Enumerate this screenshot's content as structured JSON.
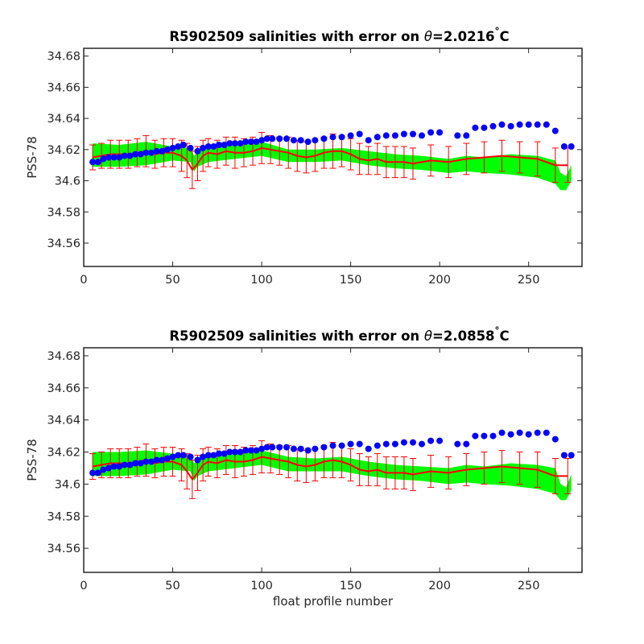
{
  "figure": {
    "xlabel": "float profile number"
  },
  "colors": {
    "band": "#00ff00",
    "errorbar": "#ff0000",
    "markers": "#0000ff",
    "axes": "#262626"
  },
  "chart_data": [
    {
      "type": "line",
      "title_prefix": "R5902509 salinities with error on ",
      "title_symbol": "θ",
      "title_suffix": "=2.0216",
      "title_degree": "°",
      "title_unit": "C",
      "ylabel": "PSS-78",
      "xlabel": "",
      "xlim": [
        0,
        280
      ],
      "ylim": [
        34.545,
        34.685
      ],
      "xticks": [
        0,
        50,
        100,
        150,
        200,
        250
      ],
      "xtick_labels": [
        "0",
        "50",
        "100",
        "150",
        "200",
        "250"
      ],
      "yticks": [
        34.56,
        34.58,
        34.6,
        34.62,
        34.64,
        34.66,
        34.68
      ],
      "ytick_labels": [
        "34.56",
        "34.58",
        "34.6",
        "34.62",
        "34.64",
        "34.66",
        "34.68"
      ],
      "grid": false,
      "series": [
        {
          "role": "band",
          "x": [
            5,
            20,
            35,
            50,
            60,
            62,
            64,
            70,
            85,
            100,
            115,
            130,
            145,
            160,
            175,
            190,
            205,
            215,
            225,
            240,
            255,
            265,
            268,
            271,
            274
          ],
          "upper": [
            34.624,
            34.623,
            34.625,
            34.622,
            34.621,
            34.616,
            34.619,
            34.622,
            34.624,
            34.625,
            34.62,
            34.62,
            34.621,
            34.619,
            34.617,
            34.616,
            34.614,
            34.616,
            34.615,
            34.617,
            34.616,
            34.613,
            34.605,
            34.603,
            34.61
          ],
          "lower": [
            34.609,
            34.609,
            34.61,
            34.613,
            34.612,
            34.606,
            34.609,
            34.612,
            34.614,
            34.616,
            34.612,
            34.612,
            34.613,
            34.61,
            34.608,
            34.607,
            34.605,
            34.606,
            34.605,
            34.604,
            34.602,
            34.598,
            34.594,
            34.594,
            34.6
          ]
        },
        {
          "role": "errorbars",
          "x": [
            5,
            10,
            15,
            20,
            25,
            30,
            35,
            40,
            45,
            50,
            55,
            58,
            61,
            64,
            67,
            70,
            75,
            80,
            85,
            90,
            95,
            100,
            105,
            110,
            115,
            120,
            125,
            130,
            135,
            140,
            145,
            150,
            155,
            160,
            165,
            170,
            175,
            180,
            185,
            195,
            205,
            215,
            225,
            235,
            245,
            255,
            265,
            272
          ],
          "y": [
            34.615,
            34.616,
            34.617,
            34.617,
            34.617,
            34.618,
            34.619,
            34.617,
            34.618,
            34.618,
            34.616,
            34.613,
            34.607,
            34.611,
            34.616,
            34.618,
            34.617,
            34.619,
            34.618,
            34.618,
            34.619,
            34.621,
            34.62,
            34.619,
            34.618,
            34.616,
            34.615,
            34.616,
            34.618,
            34.619,
            34.619,
            34.617,
            34.614,
            34.613,
            34.614,
            34.612,
            34.612,
            34.612,
            34.611,
            34.613,
            34.612,
            34.614,
            34.615,
            34.616,
            34.615,
            34.614,
            34.61,
            34.61
          ],
          "err": [
            0.008,
            0.008,
            0.009,
            0.009,
            0.009,
            0.009,
            0.01,
            0.009,
            0.009,
            0.009,
            0.01,
            0.011,
            0.012,
            0.011,
            0.01,
            0.009,
            0.009,
            0.009,
            0.01,
            0.009,
            0.009,
            0.01,
            0.009,
            0.009,
            0.01,
            0.01,
            0.01,
            0.01,
            0.01,
            0.011,
            0.01,
            0.01,
            0.01,
            0.009,
            0.01,
            0.01,
            0.01,
            0.01,
            0.01,
            0.01,
            0.01,
            0.01,
            0.01,
            0.01,
            0.01,
            0.011,
            0.011,
            0.011
          ]
        },
        {
          "role": "markers",
          "x": [
            5,
            8,
            11,
            14,
            17,
            20,
            23,
            26,
            29,
            32,
            35,
            38,
            41,
            44,
            47,
            50,
            53,
            56,
            60,
            64,
            67,
            70,
            73,
            76,
            79,
            82,
            85,
            88,
            91,
            94,
            97,
            100,
            103,
            106,
            110,
            114,
            118,
            122,
            126,
            130,
            135,
            140,
            145,
            150,
            155,
            160,
            165,
            170,
            175,
            180,
            185,
            190,
            195,
            200,
            210,
            215,
            220,
            225,
            230,
            235,
            240,
            245,
            250,
            255,
            260,
            265,
            270,
            274
          ],
          "y": [
            34.612,
            34.612,
            34.614,
            34.615,
            34.615,
            34.615,
            34.616,
            34.616,
            34.617,
            34.617,
            34.618,
            34.618,
            34.619,
            34.619,
            34.62,
            34.621,
            34.622,
            34.623,
            34.621,
            34.619,
            34.621,
            34.622,
            34.622,
            34.623,
            34.623,
            34.624,
            34.624,
            34.624,
            34.625,
            34.625,
            34.625,
            34.626,
            34.627,
            34.627,
            34.627,
            34.627,
            34.626,
            34.626,
            34.625,
            34.626,
            34.627,
            34.628,
            34.628,
            34.629,
            34.63,
            34.626,
            34.628,
            34.629,
            34.629,
            34.63,
            34.63,
            34.629,
            34.631,
            34.631,
            34.629,
            34.629,
            34.634,
            34.634,
            34.635,
            34.636,
            34.635,
            34.636,
            34.636,
            34.636,
            34.636,
            34.632,
            34.622,
            34.622
          ]
        }
      ]
    },
    {
      "type": "line",
      "title_prefix": "R5902509 salinities with error on ",
      "title_symbol": "θ",
      "title_suffix": "=2.0858",
      "title_degree": "°",
      "title_unit": "C",
      "ylabel": "PSS-78",
      "xlabel": "float profile number",
      "xlim": [
        0,
        280
      ],
      "ylim": [
        34.545,
        34.685
      ],
      "xticks": [
        0,
        50,
        100,
        150,
        200,
        250
      ],
      "xtick_labels": [
        "0",
        "50",
        "100",
        "150",
        "200",
        "250"
      ],
      "yticks": [
        34.56,
        34.58,
        34.6,
        34.62,
        34.64,
        34.66,
        34.68
      ],
      "ytick_labels": [
        "34.56",
        "34.58",
        "34.6",
        "34.62",
        "34.64",
        "34.66",
        "34.68"
      ],
      "grid": false,
      "series": [
        {
          "role": "band",
          "x": [
            5,
            20,
            35,
            50,
            60,
            62,
            64,
            70,
            85,
            100,
            115,
            130,
            145,
            160,
            175,
            190,
            205,
            215,
            225,
            240,
            255,
            265,
            268,
            271,
            274
          ],
          "upper": [
            34.62,
            34.62,
            34.621,
            34.619,
            34.618,
            34.613,
            34.615,
            34.618,
            34.62,
            34.621,
            34.617,
            34.616,
            34.617,
            34.614,
            34.612,
            34.611,
            34.61,
            34.612,
            34.611,
            34.613,
            34.612,
            34.61,
            34.6,
            34.598,
            34.606
          ],
          "lower": [
            34.605,
            34.605,
            34.606,
            34.609,
            34.608,
            34.602,
            34.605,
            34.608,
            34.61,
            34.612,
            34.608,
            34.608,
            34.608,
            34.605,
            34.603,
            34.602,
            34.6,
            34.601,
            34.6,
            34.599,
            34.597,
            34.594,
            34.59,
            34.59,
            34.596
          ]
        },
        {
          "role": "errorbars",
          "x": [
            5,
            10,
            15,
            20,
            25,
            30,
            35,
            40,
            45,
            50,
            55,
            58,
            61,
            64,
            67,
            70,
            75,
            80,
            85,
            90,
            95,
            100,
            105,
            110,
            115,
            120,
            125,
            130,
            135,
            140,
            145,
            150,
            155,
            160,
            165,
            170,
            175,
            180,
            185,
            195,
            205,
            215,
            225,
            235,
            245,
            255,
            265,
            272
          ],
          "y": [
            34.611,
            34.612,
            34.613,
            34.613,
            34.613,
            34.614,
            34.615,
            34.613,
            34.614,
            34.614,
            34.612,
            34.608,
            34.603,
            34.607,
            34.612,
            34.614,
            34.613,
            34.615,
            34.614,
            34.614,
            34.615,
            34.617,
            34.616,
            34.615,
            34.614,
            34.612,
            34.611,
            34.612,
            34.614,
            34.615,
            34.614,
            34.612,
            34.609,
            34.608,
            34.609,
            34.607,
            34.607,
            34.607,
            34.606,
            34.608,
            34.607,
            34.609,
            34.61,
            34.611,
            34.61,
            34.609,
            34.605,
            34.605
          ],
          "err": [
            0.008,
            0.008,
            0.009,
            0.009,
            0.009,
            0.009,
            0.01,
            0.009,
            0.009,
            0.009,
            0.01,
            0.011,
            0.012,
            0.011,
            0.01,
            0.009,
            0.009,
            0.009,
            0.01,
            0.009,
            0.009,
            0.01,
            0.009,
            0.009,
            0.01,
            0.01,
            0.01,
            0.01,
            0.01,
            0.011,
            0.01,
            0.01,
            0.01,
            0.009,
            0.01,
            0.01,
            0.01,
            0.01,
            0.01,
            0.01,
            0.01,
            0.01,
            0.01,
            0.01,
            0.01,
            0.011,
            0.011,
            0.011
          ]
        },
        {
          "role": "markers",
          "x": [
            5,
            8,
            11,
            14,
            17,
            20,
            23,
            26,
            29,
            32,
            35,
            38,
            41,
            44,
            47,
            50,
            53,
            56,
            60,
            64,
            67,
            70,
            73,
            76,
            79,
            82,
            85,
            88,
            91,
            94,
            97,
            100,
            103,
            106,
            110,
            114,
            118,
            122,
            126,
            130,
            135,
            140,
            145,
            150,
            155,
            160,
            165,
            170,
            175,
            180,
            185,
            190,
            195,
            200,
            210,
            215,
            220,
            225,
            230,
            235,
            240,
            245,
            250,
            255,
            260,
            265,
            270,
            274
          ],
          "y": [
            34.607,
            34.607,
            34.609,
            34.61,
            34.611,
            34.611,
            34.612,
            34.612,
            34.613,
            34.613,
            34.614,
            34.614,
            34.615,
            34.615,
            34.616,
            34.617,
            34.618,
            34.618,
            34.617,
            34.615,
            34.617,
            34.618,
            34.618,
            34.619,
            34.619,
            34.62,
            34.62,
            34.62,
            34.621,
            34.621,
            34.621,
            34.622,
            34.623,
            34.623,
            34.623,
            34.623,
            34.622,
            34.622,
            34.621,
            34.622,
            34.623,
            34.624,
            34.624,
            34.625,
            34.625,
            34.622,
            34.624,
            34.625,
            34.625,
            34.626,
            34.626,
            34.625,
            34.627,
            34.627,
            34.625,
            34.625,
            34.63,
            34.63,
            34.63,
            34.632,
            34.631,
            34.632,
            34.631,
            34.632,
            34.632,
            34.628,
            34.618,
            34.618
          ]
        }
      ]
    }
  ]
}
